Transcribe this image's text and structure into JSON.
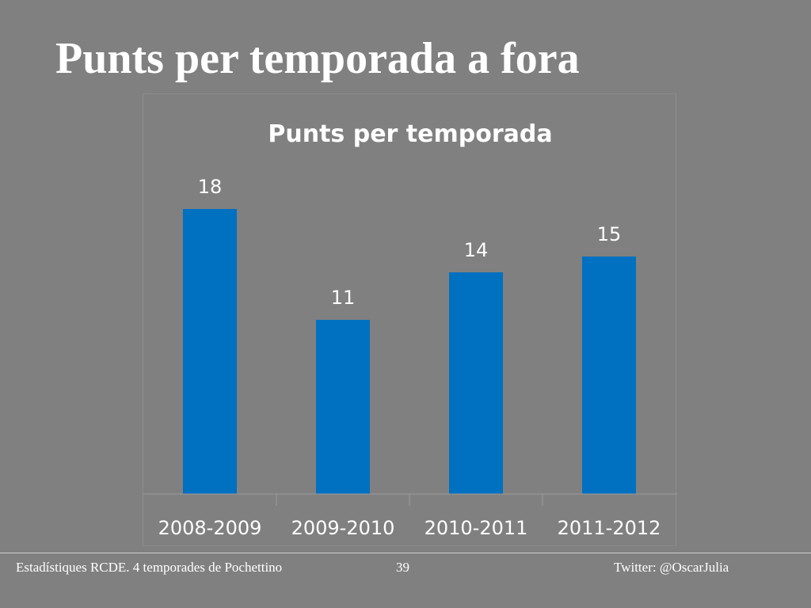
{
  "slide": {
    "title": "Punts per temporada a fora"
  },
  "footer": {
    "left": "Estadístiques RCDE. 4 temporades de Pochettino",
    "page": "39",
    "right": "Twitter: @OscarJulia"
  },
  "colors": {
    "background": "#808080",
    "bar": "#0070c0",
    "text": "#ffffff"
  },
  "chart_data": {
    "type": "bar",
    "title": "Punts per temporada",
    "categories": [
      "2008-2009",
      "2009-2010",
      "2010-2011",
      "2011-2012"
    ],
    "values": [
      18,
      11,
      14,
      15
    ],
    "data_labels": [
      "18",
      "11",
      "14",
      "15"
    ],
    "ylim": [
      0,
      20
    ],
    "grid": false,
    "legend": "none",
    "y_axis_visible": false
  }
}
